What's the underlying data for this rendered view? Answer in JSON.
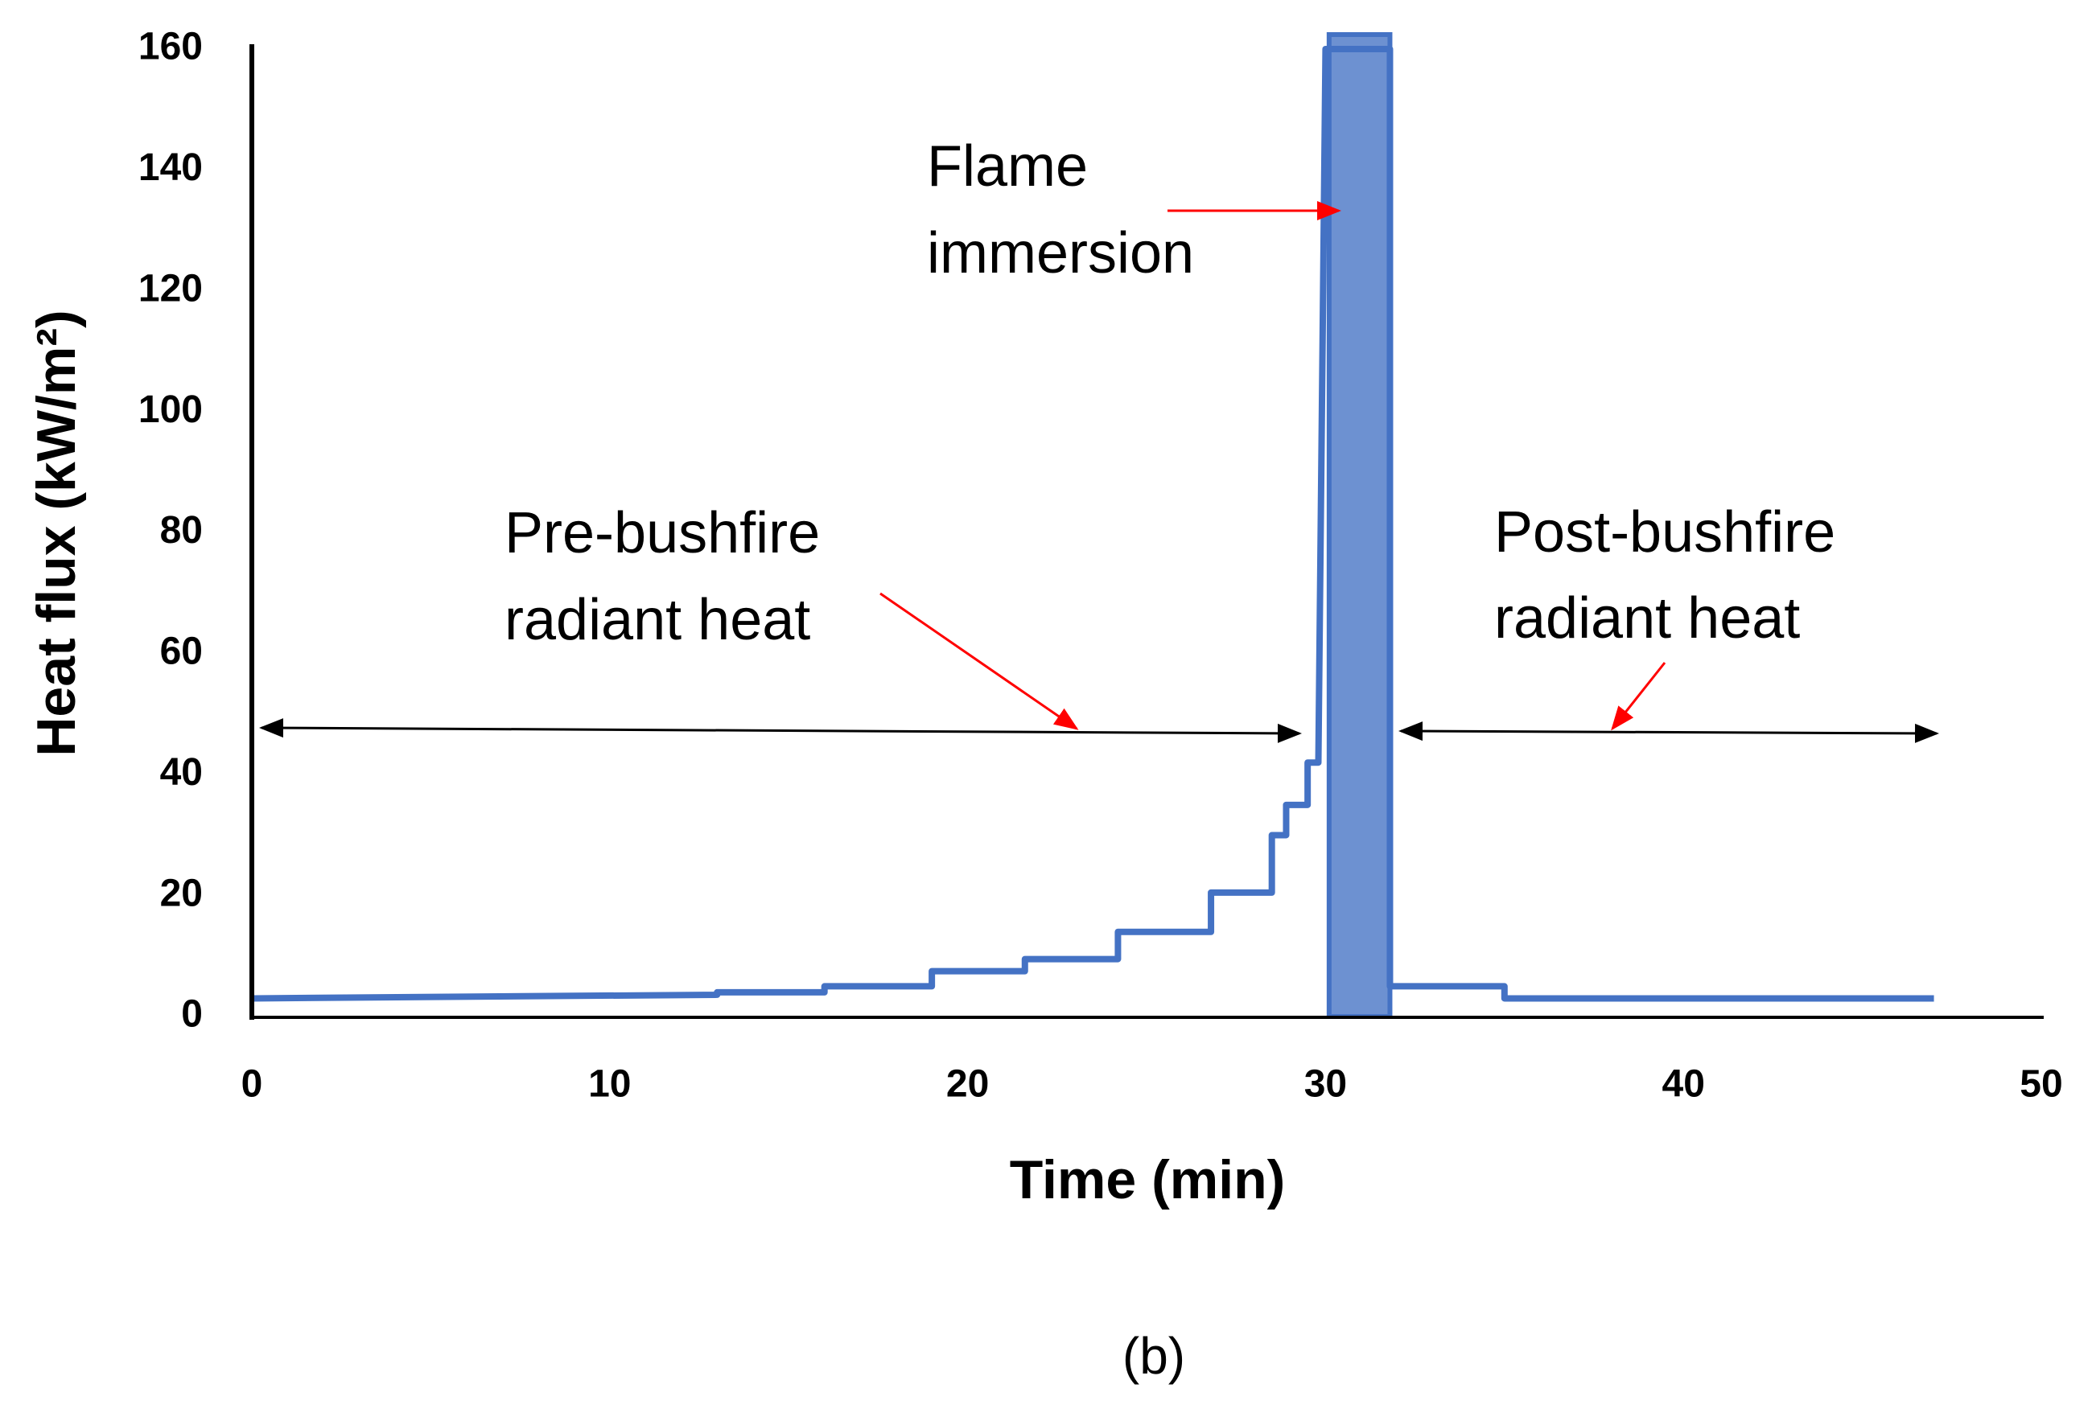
{
  "chart_data": {
    "type": "line",
    "x_label": "Time (min)",
    "y_label": "Heat  flux (kW/m²)",
    "caption": "(b)",
    "xlim": [
      0,
      50
    ],
    "xticks": [
      0,
      10,
      20,
      30,
      40,
      50
    ],
    "ylim": [
      0,
      160
    ],
    "yticks": [
      0,
      20,
      40,
      60,
      80,
      100,
      120,
      140,
      160
    ],
    "grid": true,
    "series": [
      {
        "color": "#4472c4",
        "x": [
          0,
          13,
          13,
          16,
          16,
          19,
          19,
          21.6,
          21.6,
          24.2,
          24.2,
          26.8,
          26.8,
          28.5,
          28.5,
          28.9,
          28.9,
          29.5,
          29.5,
          29.8,
          30,
          31.8,
          31.8,
          35,
          35,
          47
        ],
        "values": [
          3,
          3.6,
          4,
          4,
          5,
          5,
          7.5,
          7.5,
          9.5,
          9.5,
          14,
          14,
          20.5,
          20.5,
          30,
          30,
          35,
          35,
          42,
          42,
          160,
          160,
          5,
          5,
          3,
          3
        ]
      }
    ],
    "shaded_x": [
      30.1,
      31.8
    ],
    "shaded_color": "#4472c4",
    "annotations": {
      "flame": [
        "Flame",
        "immersion"
      ],
      "pre": [
        "Pre-bushfire",
        "radiant heat"
      ],
      "post": [
        "Post-bushfire",
        "radiant heat"
      ]
    }
  }
}
